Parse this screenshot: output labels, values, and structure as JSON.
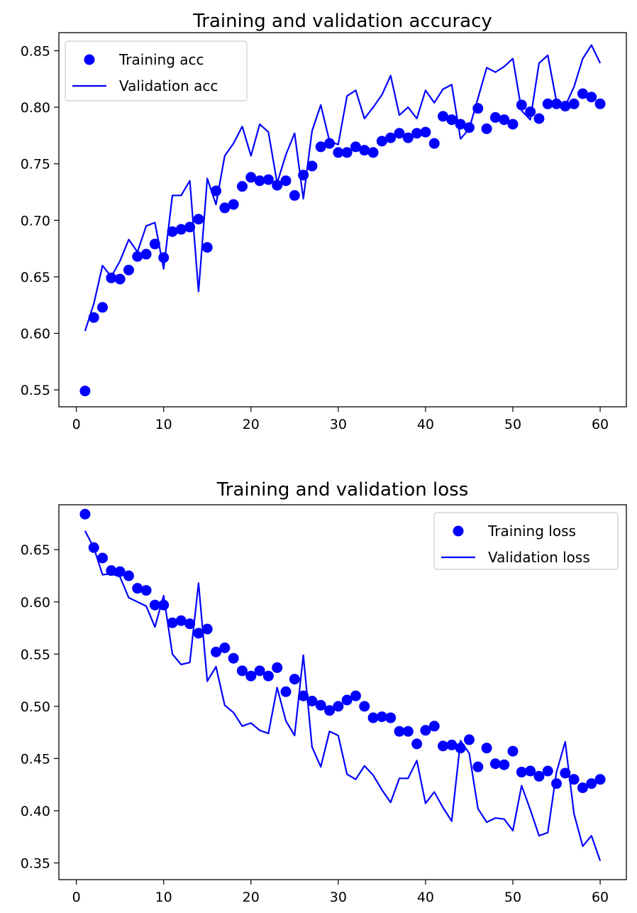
{
  "chart_data": [
    {
      "type": "scatter",
      "title": "Training and validation accuracy",
      "xlabel": "",
      "ylabel": "",
      "xlim": [
        -2,
        63
      ],
      "ylim": [
        0.535,
        0.866
      ],
      "xticks": [
        0,
        10,
        20,
        30,
        40,
        50,
        60
      ],
      "yticks": [
        0.55,
        0.6,
        0.65,
        0.7,
        0.75,
        0.8,
        0.85
      ],
      "ytick_labels": [
        "0.55",
        "0.60",
        "0.65",
        "0.70",
        "0.75",
        "0.80",
        "0.85"
      ],
      "grid": false,
      "legend_position": "top-left",
      "series": [
        {
          "name": "Training acc",
          "style": "dots",
          "color": "#0000ff",
          "x": [
            1,
            2,
            3,
            4,
            5,
            6,
            7,
            8,
            9,
            10,
            11,
            12,
            13,
            14,
            15,
            16,
            17,
            18,
            19,
            20,
            21,
            22,
            23,
            24,
            25,
            26,
            27,
            28,
            29,
            30,
            31,
            32,
            33,
            34,
            35,
            36,
            37,
            38,
            39,
            40,
            41,
            42,
            43,
            44,
            45,
            46,
            47,
            48,
            49,
            50,
            51,
            52,
            53,
            54,
            55,
            56,
            57,
            58,
            59,
            60
          ],
          "values": [
            0.549,
            0.614,
            0.623,
            0.649,
            0.648,
            0.656,
            0.668,
            0.67,
            0.679,
            0.667,
            0.69,
            0.692,
            0.694,
            0.701,
            0.676,
            0.726,
            0.711,
            0.714,
            0.73,
            0.738,
            0.735,
            0.736,
            0.731,
            0.735,
            0.722,
            0.74,
            0.748,
            0.765,
            0.768,
            0.76,
            0.76,
            0.765,
            0.762,
            0.76,
            0.77,
            0.773,
            0.777,
            0.773,
            0.777,
            0.778,
            0.768,
            0.792,
            0.789,
            0.785,
            0.782,
            0.799,
            0.781,
            0.791,
            0.789,
            0.785,
            0.802,
            0.796,
            0.79,
            0.803,
            0.803,
            0.801,
            0.803,
            0.812,
            0.809,
            0.803
          ]
        },
        {
          "name": "Validation acc",
          "style": "line",
          "color": "#0000ff",
          "x": [
            1,
            2,
            3,
            4,
            5,
            6,
            7,
            8,
            9,
            10,
            11,
            12,
            13,
            14,
            15,
            16,
            17,
            18,
            19,
            20,
            21,
            22,
            23,
            24,
            25,
            26,
            27,
            28,
            29,
            30,
            31,
            32,
            33,
            34,
            35,
            36,
            37,
            38,
            39,
            40,
            41,
            42,
            43,
            44,
            45,
            46,
            47,
            48,
            49,
            50,
            51,
            52,
            53,
            54,
            55,
            56,
            57,
            58,
            59,
            60
          ],
          "values": [
            0.602,
            0.626,
            0.66,
            0.65,
            0.664,
            0.683,
            0.672,
            0.695,
            0.698,
            0.657,
            0.722,
            0.722,
            0.735,
            0.637,
            0.737,
            0.714,
            0.757,
            0.768,
            0.783,
            0.757,
            0.785,
            0.778,
            0.733,
            0.758,
            0.777,
            0.719,
            0.779,
            0.802,
            0.77,
            0.767,
            0.81,
            0.815,
            0.79,
            0.8,
            0.811,
            0.828,
            0.793,
            0.8,
            0.79,
            0.815,
            0.804,
            0.816,
            0.82,
            0.772,
            0.781,
            0.808,
            0.835,
            0.831,
            0.836,
            0.843,
            0.797,
            0.789,
            0.839,
            0.846,
            0.805,
            0.801,
            0.818,
            0.843,
            0.855,
            0.839
          ]
        }
      ]
    },
    {
      "type": "scatter",
      "title": "Training and validation loss",
      "xlabel": "",
      "ylabel": "",
      "xlim": [
        -2,
        63
      ],
      "ylim": [
        0.334,
        0.693
      ],
      "xticks": [
        0,
        10,
        20,
        30,
        40,
        50,
        60
      ],
      "yticks": [
        0.35,
        0.4,
        0.45,
        0.5,
        0.55,
        0.6,
        0.65
      ],
      "ytick_labels": [
        "0.35",
        "0.40",
        "0.45",
        "0.50",
        "0.55",
        "0.60",
        "0.65"
      ],
      "grid": false,
      "legend_position": "top-right",
      "series": [
        {
          "name": "Training loss",
          "style": "dots",
          "color": "#0000ff",
          "x": [
            1,
            2,
            3,
            4,
            5,
            6,
            7,
            8,
            9,
            10,
            11,
            12,
            13,
            14,
            15,
            16,
            17,
            18,
            19,
            20,
            21,
            22,
            23,
            24,
            25,
            26,
            27,
            28,
            29,
            30,
            31,
            32,
            33,
            34,
            35,
            36,
            37,
            38,
            39,
            40,
            41,
            42,
            43,
            44,
            45,
            46,
            47,
            48,
            49,
            50,
            51,
            52,
            53,
            54,
            55,
            56,
            57,
            58,
            59,
            60
          ],
          "values": [
            0.684,
            0.652,
            0.642,
            0.63,
            0.629,
            0.625,
            0.613,
            0.611,
            0.597,
            0.597,
            0.58,
            0.582,
            0.579,
            0.57,
            0.574,
            0.552,
            0.556,
            0.546,
            0.534,
            0.529,
            0.534,
            0.529,
            0.537,
            0.514,
            0.526,
            0.51,
            0.505,
            0.501,
            0.496,
            0.5,
            0.506,
            0.51,
            0.5,
            0.489,
            0.49,
            0.489,
            0.476,
            0.476,
            0.464,
            0.477,
            0.481,
            0.462,
            0.463,
            0.46,
            0.468,
            0.442,
            0.46,
            0.445,
            0.444,
            0.457,
            0.437,
            0.438,
            0.433,
            0.438,
            0.426,
            0.436,
            0.43,
            0.422,
            0.426,
            0.43
          ]
        },
        {
          "name": "Validation loss",
          "style": "line",
          "color": "#0000ff",
          "x": [
            1,
            2,
            3,
            4,
            5,
            6,
            7,
            8,
            9,
            10,
            11,
            12,
            13,
            14,
            15,
            16,
            17,
            18,
            19,
            20,
            21,
            22,
            23,
            24,
            25,
            26,
            27,
            28,
            29,
            30,
            31,
            32,
            33,
            34,
            35,
            36,
            37,
            38,
            39,
            40,
            41,
            42,
            43,
            44,
            45,
            46,
            47,
            48,
            49,
            50,
            51,
            52,
            53,
            54,
            55,
            56,
            57,
            58,
            59,
            60
          ],
          "values": [
            0.668,
            0.652,
            0.626,
            0.627,
            0.624,
            0.604,
            0.6,
            0.596,
            0.576,
            0.606,
            0.55,
            0.54,
            0.542,
            0.618,
            0.524,
            0.538,
            0.501,
            0.494,
            0.481,
            0.484,
            0.477,
            0.474,
            0.518,
            0.486,
            0.472,
            0.549,
            0.461,
            0.442,
            0.476,
            0.472,
            0.435,
            0.43,
            0.443,
            0.434,
            0.42,
            0.408,
            0.431,
            0.431,
            0.448,
            0.407,
            0.418,
            0.403,
            0.39,
            0.467,
            0.455,
            0.402,
            0.389,
            0.393,
            0.392,
            0.381,
            0.424,
            0.401,
            0.376,
            0.379,
            0.437,
            0.466,
            0.397,
            0.366,
            0.376,
            0.352
          ]
        }
      ]
    }
  ]
}
